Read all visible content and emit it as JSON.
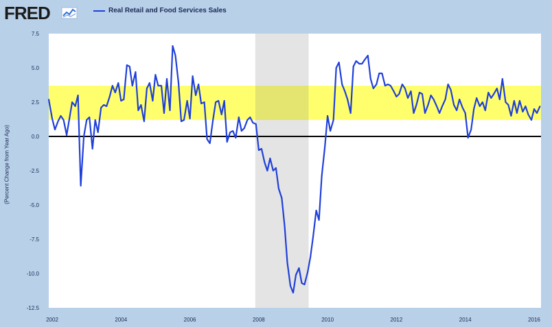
{
  "brand": {
    "name": "FRED"
  },
  "colors": {
    "series": "#1f3fd9",
    "band": "#ffff55",
    "recession": "#e0e0e0",
    "zero_line": "#000000",
    "frame": "#b8d0e8",
    "plot_bg": "#ffffff"
  },
  "chart_data": {
    "type": "line",
    "title": "",
    "xlabel": "",
    "ylabel": "(Percent Change from Year Ago)",
    "ylim": [
      -12.5,
      7.5
    ],
    "xlim": [
      2001.9,
      2016.2
    ],
    "grid": false,
    "legend_position": "top-left",
    "y_ticks": [
      "7.5",
      "5.0",
      "2.5",
      "0.0",
      "-2.5",
      "-5.0",
      "-7.5",
      "-10.0",
      "-12.5"
    ],
    "x_ticks": [
      "2002",
      "2004",
      "2006",
      "2008",
      "2010",
      "2012",
      "2014",
      "2016"
    ],
    "shaded_band": {
      "from": 1.2,
      "to": 3.7,
      "color": "#ffff55"
    },
    "recession": {
      "from": 2007.9,
      "to": 2009.45
    },
    "series": [
      {
        "name": "Real Retail and Food Services Sales",
        "color": "#1f3fd9",
        "points": [
          [
            2001.9,
            2.7
          ],
          [
            2001.95,
            2.0
          ],
          [
            2002.0,
            1.3
          ],
          [
            2002.08,
            0.5
          ],
          [
            2002.17,
            1.1
          ],
          [
            2002.25,
            1.5
          ],
          [
            2002.33,
            1.2
          ],
          [
            2002.42,
            0.1
          ],
          [
            2002.5,
            1.3
          ],
          [
            2002.58,
            2.5
          ],
          [
            2002.67,
            2.2
          ],
          [
            2002.75,
            3.0
          ],
          [
            2002.83,
            -3.6
          ],
          [
            2002.92,
            0.0
          ],
          [
            2003.0,
            1.2
          ],
          [
            2003.08,
            1.4
          ],
          [
            2003.17,
            -0.9
          ],
          [
            2003.25,
            1.2
          ],
          [
            2003.33,
            0.3
          ],
          [
            2003.42,
            2.1
          ],
          [
            2003.5,
            2.3
          ],
          [
            2003.58,
            2.2
          ],
          [
            2003.67,
            2.9
          ],
          [
            2003.75,
            3.7
          ],
          [
            2003.83,
            3.2
          ],
          [
            2003.92,
            3.9
          ],
          [
            2004.0,
            2.6
          ],
          [
            2004.08,
            2.7
          ],
          [
            2004.17,
            5.2
          ],
          [
            2004.25,
            5.1
          ],
          [
            2004.33,
            3.7
          ],
          [
            2004.42,
            4.7
          ],
          [
            2004.5,
            1.9
          ],
          [
            2004.58,
            2.3
          ],
          [
            2004.67,
            1.1
          ],
          [
            2004.75,
            3.5
          ],
          [
            2004.83,
            3.9
          ],
          [
            2004.92,
            2.6
          ],
          [
            2005.0,
            4.5
          ],
          [
            2005.08,
            3.7
          ],
          [
            2005.17,
            3.7
          ],
          [
            2005.25,
            1.7
          ],
          [
            2005.33,
            4.2
          ],
          [
            2005.42,
            1.9
          ],
          [
            2005.5,
            6.6
          ],
          [
            2005.58,
            5.9
          ],
          [
            2005.67,
            3.9
          ],
          [
            2005.75,
            1.1
          ],
          [
            2005.83,
            1.2
          ],
          [
            2005.92,
            2.6
          ],
          [
            2006.0,
            1.3
          ],
          [
            2006.08,
            4.4
          ],
          [
            2006.17,
            3.0
          ],
          [
            2006.25,
            3.8
          ],
          [
            2006.33,
            2.4
          ],
          [
            2006.42,
            2.5
          ],
          [
            2006.5,
            -0.2
          ],
          [
            2006.58,
            -0.5
          ],
          [
            2006.67,
            1.2
          ],
          [
            2006.75,
            2.5
          ],
          [
            2006.83,
            2.6
          ],
          [
            2006.92,
            1.6
          ],
          [
            2007.0,
            2.6
          ],
          [
            2007.08,
            -0.4
          ],
          [
            2007.17,
            0.3
          ],
          [
            2007.25,
            0.4
          ],
          [
            2007.33,
            -0.1
          ],
          [
            2007.42,
            1.4
          ],
          [
            2007.5,
            0.4
          ],
          [
            2007.58,
            0.6
          ],
          [
            2007.67,
            1.2
          ],
          [
            2007.75,
            1.4
          ],
          [
            2007.83,
            1.0
          ],
          [
            2007.92,
            0.9
          ],
          [
            2008.0,
            -1.0
          ],
          [
            2008.08,
            -0.9
          ],
          [
            2008.17,
            -1.9
          ],
          [
            2008.25,
            -2.5
          ],
          [
            2008.33,
            -1.6
          ],
          [
            2008.42,
            -2.5
          ],
          [
            2008.5,
            -2.3
          ],
          [
            2008.58,
            -3.8
          ],
          [
            2008.67,
            -4.5
          ],
          [
            2008.75,
            -6.5
          ],
          [
            2008.83,
            -9.2
          ],
          [
            2008.92,
            -10.9
          ],
          [
            2009.0,
            -11.4
          ],
          [
            2009.08,
            -10.1
          ],
          [
            2009.17,
            -9.6
          ],
          [
            2009.25,
            -10.7
          ],
          [
            2009.33,
            -10.8
          ],
          [
            2009.42,
            -9.9
          ],
          [
            2009.5,
            -8.8
          ],
          [
            2009.58,
            -7.3
          ],
          [
            2009.67,
            -5.4
          ],
          [
            2009.75,
            -6.1
          ],
          [
            2009.83,
            -2.9
          ],
          [
            2009.92,
            -0.8
          ],
          [
            2010.0,
            1.5
          ],
          [
            2010.08,
            0.4
          ],
          [
            2010.17,
            1.2
          ],
          [
            2010.25,
            5.0
          ],
          [
            2010.33,
            5.4
          ],
          [
            2010.42,
            3.8
          ],
          [
            2010.5,
            3.3
          ],
          [
            2010.58,
            2.7
          ],
          [
            2010.67,
            1.7
          ],
          [
            2010.75,
            5.1
          ],
          [
            2010.83,
            5.5
          ],
          [
            2010.92,
            5.3
          ],
          [
            2011.0,
            5.3
          ],
          [
            2011.08,
            5.6
          ],
          [
            2011.17,
            5.9
          ],
          [
            2011.25,
            4.2
          ],
          [
            2011.33,
            3.5
          ],
          [
            2011.42,
            3.8
          ],
          [
            2011.5,
            4.6
          ],
          [
            2011.58,
            4.6
          ],
          [
            2011.67,
            3.7
          ],
          [
            2011.75,
            3.8
          ],
          [
            2011.83,
            3.7
          ],
          [
            2011.92,
            3.3
          ],
          [
            2012.0,
            2.9
          ],
          [
            2012.08,
            3.1
          ],
          [
            2012.17,
            3.8
          ],
          [
            2012.25,
            3.5
          ],
          [
            2012.33,
            2.8
          ],
          [
            2012.42,
            3.3
          ],
          [
            2012.5,
            1.7
          ],
          [
            2012.58,
            2.3
          ],
          [
            2012.67,
            3.2
          ],
          [
            2012.75,
            3.1
          ],
          [
            2012.83,
            1.7
          ],
          [
            2012.92,
            2.3
          ],
          [
            2013.0,
            3.0
          ],
          [
            2013.08,
            2.7
          ],
          [
            2013.17,
            2.2
          ],
          [
            2013.25,
            1.7
          ],
          [
            2013.33,
            2.2
          ],
          [
            2013.42,
            2.7
          ],
          [
            2013.5,
            3.8
          ],
          [
            2013.58,
            3.4
          ],
          [
            2013.67,
            2.3
          ],
          [
            2013.75,
            1.9
          ],
          [
            2013.83,
            2.7
          ],
          [
            2013.92,
            2.1
          ],
          [
            2014.0,
            1.7
          ],
          [
            2014.08,
            -0.1
          ],
          [
            2014.17,
            0.5
          ],
          [
            2014.25,
            2.0
          ],
          [
            2014.33,
            2.8
          ],
          [
            2014.42,
            2.2
          ],
          [
            2014.5,
            2.5
          ],
          [
            2014.58,
            1.9
          ],
          [
            2014.67,
            3.2
          ],
          [
            2014.75,
            2.8
          ],
          [
            2014.83,
            3.1
          ],
          [
            2014.92,
            3.5
          ],
          [
            2015.0,
            2.7
          ],
          [
            2015.08,
            4.2
          ],
          [
            2015.17,
            2.5
          ],
          [
            2015.25,
            2.3
          ],
          [
            2015.33,
            1.5
          ],
          [
            2015.42,
            2.6
          ],
          [
            2015.5,
            1.7
          ],
          [
            2015.58,
            2.6
          ],
          [
            2015.67,
            1.8
          ],
          [
            2015.75,
            2.2
          ],
          [
            2015.83,
            1.6
          ],
          [
            2015.92,
            1.2
          ],
          [
            2016.0,
            2.0
          ],
          [
            2016.08,
            1.7
          ],
          [
            2016.17,
            2.2
          ]
        ]
      }
    ]
  }
}
